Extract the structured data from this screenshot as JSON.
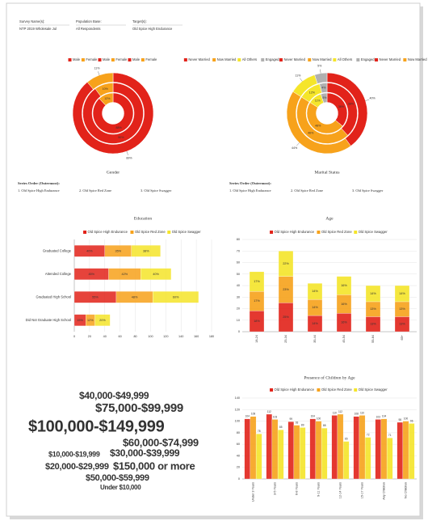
{
  "header": {
    "columns": [
      {
        "label": "Survey Name(s):",
        "value": "NTP 2019 Wholesale Jul"
      },
      {
        "label": "Population Base:",
        "value": "All Respondents"
      },
      {
        "label": "Target(s):",
        "value": "Old Spice High Endurance"
      }
    ]
  },
  "chart_data": [
    {
      "type": "donut",
      "title": "Gender",
      "categories": [
        "Male",
        "Female"
      ],
      "colors": [
        "#e2231a",
        "#f7a21b"
      ],
      "series": [
        {
          "values": [
            89,
            11
          ],
          "value_labels": [
            "89%",
            "11%"
          ]
        },
        {
          "values": [
            90,
            10
          ],
          "value_labels": [
            "90%",
            "10%"
          ]
        },
        {
          "values": [
            88,
            12
          ],
          "value_labels": [
            "88%",
            "12%"
          ]
        }
      ],
      "series_order_title": "Series Order (Outermost):",
      "series_order": [
        "1. Old Spice High Endurance",
        "2. Old Spice Red Zone",
        "3. Old Spice Swagger"
      ]
    },
    {
      "type": "donut",
      "title": "Marital Status",
      "categories": [
        "Never Married",
        "Now Married",
        "All Others",
        "Engaged"
      ],
      "colors": [
        "#e2231a",
        "#f7a21b",
        "#f5e52a",
        "#b0b0b0"
      ],
      "series": [
        {
          "values": [
            40,
            44,
            11,
            5
          ],
          "value_labels": [
            "40%",
            "44%",
            "11%",
            "5%"
          ]
        },
        {
          "values": [
            38,
            46,
            12,
            4
          ],
          "value_labels": [
            "38%",
            "46%",
            "12%",
            "4%"
          ]
        },
        {
          "values": [
            36,
            48,
            11,
            5
          ],
          "value_labels": [
            "36%",
            "48%",
            "11%",
            "5%"
          ]
        }
      ],
      "series_order_title": "Series Order (Outermost):",
      "series_order": [
        "1. Old Spice High Endurance",
        "2. Old Spice Red Zone",
        "3. Old Spice Swagger"
      ]
    },
    {
      "type": "bar",
      "orientation": "horizontal",
      "stacked": true,
      "grid": true,
      "title": "Education",
      "categories": [
        "Graduated College",
        "Attended College",
        "Graduated High School",
        "Did Not Graduate High School"
      ],
      "series": [
        {
          "name": "Old Spice High Endurance",
          "color": "#e2231a",
          "values": [
            40,
            45,
            55,
            15
          ],
          "value_labels": [
            "40%",
            "45%",
            "55%",
            "15%"
          ]
        },
        {
          "name": "Old Spice Red Zone",
          "color": "#f7a21b",
          "values": [
            35,
            42,
            48,
            12
          ],
          "value_labels": [
            "35%",
            "42%",
            "48%",
            "12%"
          ]
        },
        {
          "name": "Old Spice Swagger",
          "color": "#f5e52a",
          "values": [
            38,
            40,
            60,
            20
          ],
          "value_labels": [
            "38%",
            "40%",
            "60%",
            "20%"
          ]
        }
      ],
      "xlim": [
        0,
        180
      ],
      "xticks": [
        0,
        20,
        40,
        60,
        80,
        100,
        120,
        140,
        160,
        180
      ]
    },
    {
      "type": "bar",
      "orientation": "vertical",
      "stacked": true,
      "grid": true,
      "title": "Age",
      "categories": [
        "18-24",
        "25-34",
        "35-44",
        "45-54",
        "55-64",
        "65+"
      ],
      "series": [
        {
          "name": "Old Spice High Endurance",
          "color": "#e2231a",
          "values": [
            18,
            25,
            14,
            16,
            13,
            13
          ],
          "value_labels": [
            "18%",
            "25%",
            "14%",
            "16%",
            "13%",
            "13%"
          ]
        },
        {
          "name": "Old Spice Red Zone",
          "color": "#f7a21b",
          "values": [
            17,
            23,
            14,
            16,
            13,
            13
          ],
          "value_labels": [
            "17%",
            "23%",
            "14%",
            "16%",
            "13%",
            "13%"
          ]
        },
        {
          "name": "Old Spice Swagger",
          "color": "#f5e52a",
          "values": [
            17,
            22,
            14,
            16,
            14,
            14
          ],
          "value_labels": [
            "17%",
            "22%",
            "14%",
            "16%",
            "14%",
            "14%"
          ]
        }
      ],
      "ylim": [
        0,
        80
      ],
      "yticks": [
        0,
        10,
        20,
        30,
        40,
        50,
        60,
        70,
        80
      ]
    },
    {
      "type": "wordcloud",
      "words": [
        "$40,000-$49,999",
        "$75,000-$99,999",
        "$100,000-$149,999",
        "$60,000-$74,999",
        "$10,000-$19,999",
        "$30,000-$39,999",
        "$20,000-$29,999",
        "$150,000 or more",
        "$50,000-$59,999",
        "Under $10,000"
      ],
      "values": [
        12,
        15,
        20,
        13,
        9,
        12,
        11,
        13,
        11,
        8
      ],
      "colors": [
        "#8fd14f",
        "#a9b8e8",
        "#1f6fb4",
        "#f58a1f",
        "#9b59b6",
        "#3daa3d",
        "#f08a8a",
        "#f4b183",
        "#d9342b",
        "#b9a7e0"
      ]
    },
    {
      "type": "bar",
      "orientation": "vertical",
      "stacked": false,
      "grid": true,
      "title": "Presence of Children by Age",
      "categories": [
        "Under 3 Years",
        "3-5 Years",
        "6-8 Years",
        "9-11 Years",
        "12-14 Years",
        "15-17 Years",
        "Any Children",
        "No Children"
      ],
      "series": [
        {
          "name": "Old Spice High Endurance",
          "color": "#e2231a",
          "values": [
            104,
            112,
            99,
            104,
            110,
            108,
            103,
            98
          ]
        },
        {
          "name": "Old Spice Red Zone",
          "color": "#f7a21b",
          "values": [
            108,
            103,
            93,
            100,
            112,
            110,
            104,
            100
          ]
        },
        {
          "name": "Old Spice Swagger",
          "color": "#f5e52a",
          "values": [
            78,
            85,
            89,
            88,
            65,
            72,
            71,
            96
          ]
        }
      ],
      "ylim": [
        0,
        140
      ],
      "yticks": [
        0,
        20,
        40,
        60,
        80,
        100,
        120,
        140
      ]
    }
  ]
}
